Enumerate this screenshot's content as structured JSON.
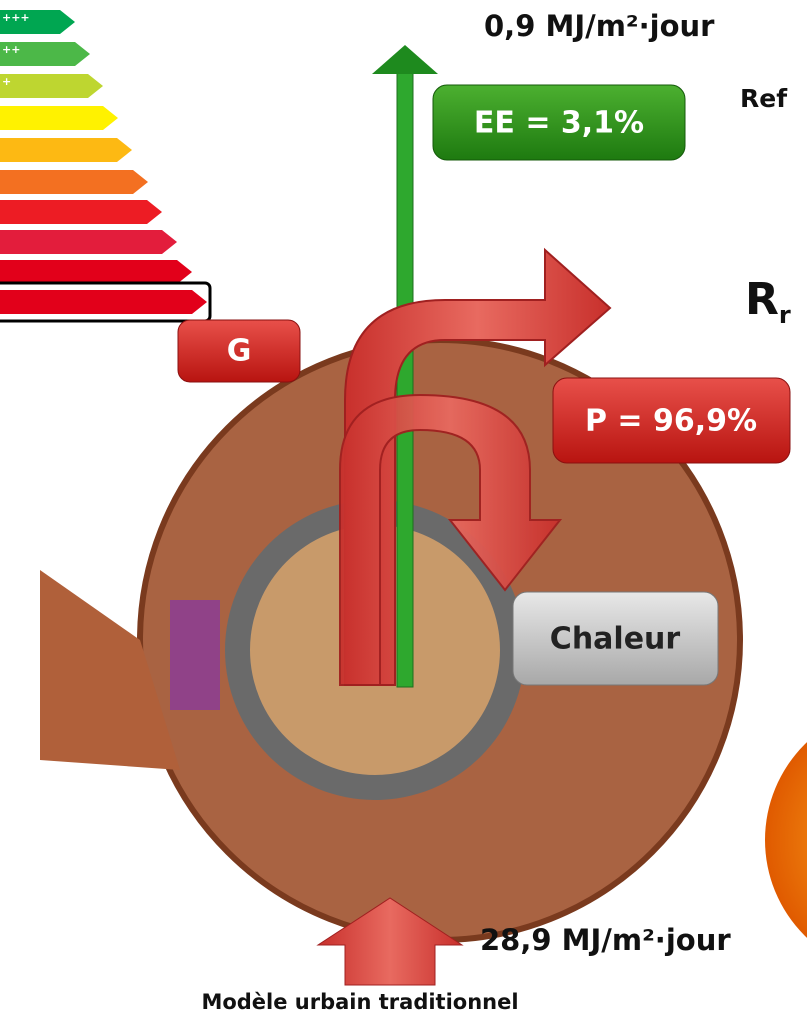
{
  "energy_label": {
    "classes": [
      "+++",
      "++",
      "+"
    ],
    "selected": "G"
  },
  "flows": {
    "top_flux": "0,9 MJ/m²·jour",
    "reflected": "Ref",
    "ee": "EE = 3,1%",
    "rr": {
      "main": "R",
      "sub": "r"
    },
    "p": "P = 96,9%",
    "heat": "Chaleur",
    "incoming_flux": "28,9 MJ/m²·jour"
  },
  "caption": "Modèle urbain traditionnel"
}
